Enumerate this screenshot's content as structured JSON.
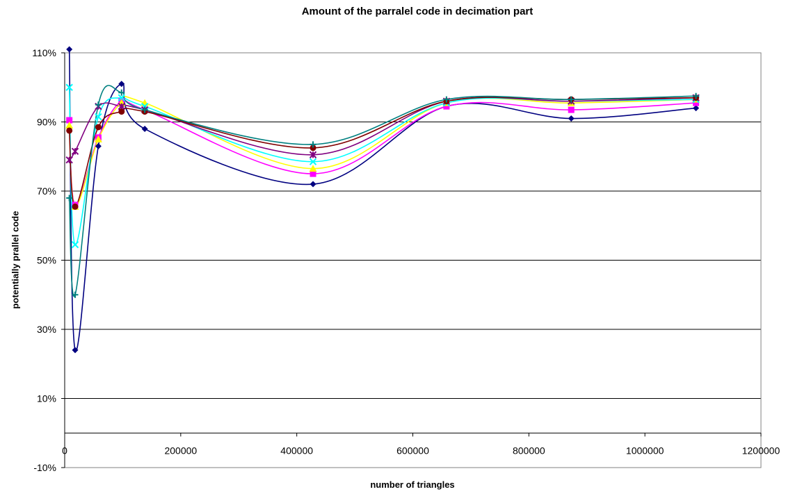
{
  "chart_data": {
    "type": "line",
    "title": "Amount of the parralel code in decimation part",
    "xlabel": "number of triangles",
    "ylabel": "potentially prallel code",
    "xlim": [
      0,
      1200000
    ],
    "ylim": [
      -0.1,
      1.1
    ],
    "x_ticks": [
      0,
      200000,
      400000,
      600000,
      800000,
      1000000,
      1200000
    ],
    "y_ticks": [
      -0.1,
      0.1,
      0.3,
      0.5,
      0.7,
      0.9,
      1.1
    ],
    "x_tick_labels": [
      "0",
      "200000",
      "400000",
      "600000",
      "800000",
      "1000000",
      "1200000"
    ],
    "y_tick_labels": [
      "-10%",
      "10%",
      "30%",
      "50%",
      "70%",
      "90%",
      "110%"
    ],
    "grid": "horizontal",
    "smooth": true,
    "x": [
      8000,
      18000,
      58000,
      98000,
      138000,
      428000,
      658000,
      873000,
      1088000
    ],
    "series": [
      {
        "color": "#000080",
        "marker": "diamond",
        "values": [
          1.11,
          0.24,
          0.83,
          1.01,
          0.88,
          0.72,
          0.945,
          0.91,
          0.94
        ]
      },
      {
        "color": "#ff00ff",
        "marker": "square",
        "values": [
          0.905,
          0.66,
          0.855,
          0.96,
          0.935,
          0.75,
          0.945,
          0.935,
          0.955
        ]
      },
      {
        "color": "#ffff00",
        "marker": "triangle",
        "values": [
          0.89,
          0.655,
          0.85,
          0.955,
          0.955,
          0.765,
          0.955,
          0.955,
          0.965
        ]
      },
      {
        "color": "#00ffff",
        "marker": "x",
        "values": [
          1.0,
          0.545,
          0.915,
          0.97,
          0.945,
          0.785,
          0.955,
          0.96,
          0.965
        ]
      },
      {
        "color": "#800080",
        "marker": "star",
        "values": [
          0.79,
          0.815,
          0.945,
          0.945,
          0.935,
          0.805,
          0.96,
          0.96,
          0.97
        ]
      },
      {
        "color": "#800000",
        "marker": "circle",
        "values": [
          0.875,
          0.655,
          0.885,
          0.93,
          0.93,
          0.825,
          0.96,
          0.965,
          0.97
        ]
      },
      {
        "color": "#008080",
        "marker": "plus",
        "values": [
          0.68,
          0.4,
          0.95,
          0.985,
          0.935,
          0.835,
          0.965,
          0.965,
          0.975
        ]
      }
    ]
  }
}
